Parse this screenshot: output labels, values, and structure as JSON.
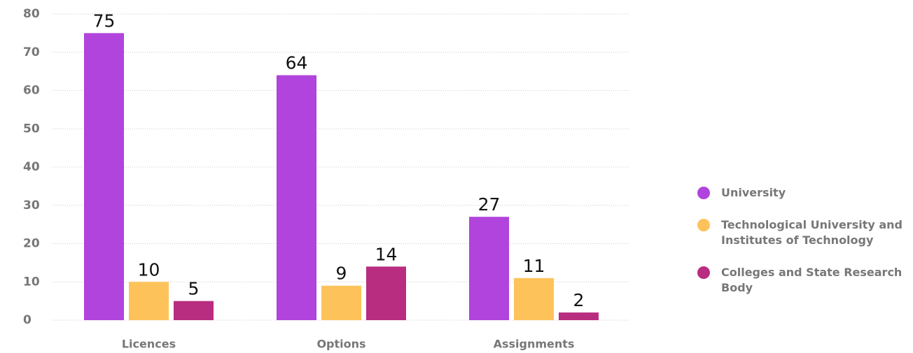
{
  "chart_data": {
    "type": "bar",
    "categories": [
      "Licences",
      "Options",
      "Assignments"
    ],
    "series": [
      {
        "name": "University",
        "color": "#b044dc",
        "values": [
          75,
          64,
          27
        ]
      },
      {
        "name": "Technological University and Institutes of Technology",
        "color": "#fdc35a",
        "values": [
          10,
          9,
          11
        ]
      },
      {
        "name": "Colleges and State Research Body",
        "color": "#b92d80",
        "values": [
          5,
          14,
          2
        ]
      }
    ],
    "ylim": [
      0,
      80
    ],
    "yticks": [
      0,
      10,
      20,
      30,
      40,
      50,
      60,
      70,
      80
    ],
    "grid": true,
    "legend": "right"
  }
}
